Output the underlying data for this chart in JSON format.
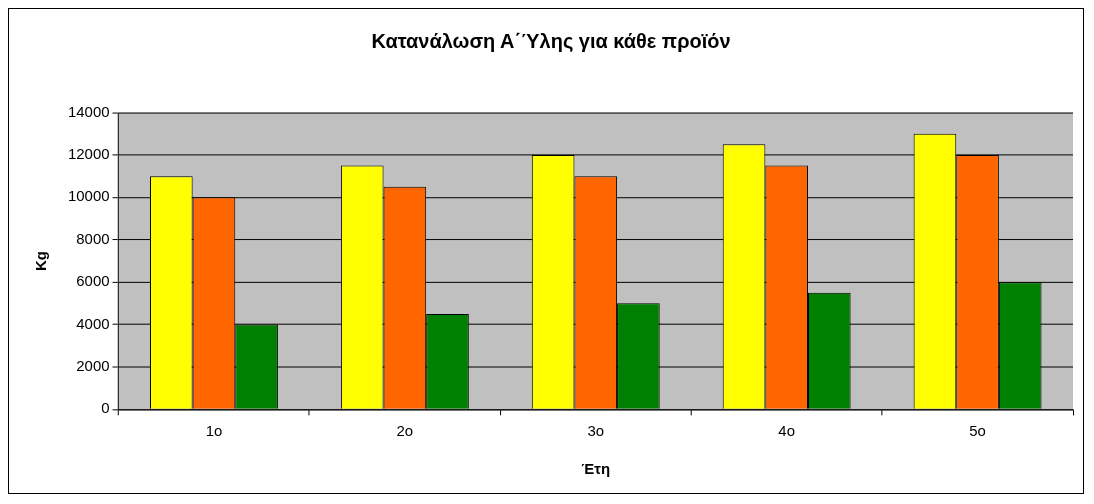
{
  "chart_data": {
    "type": "bar",
    "title": "Κατανάλωση Α΄Ύλης για κάθε προϊόν",
    "xlabel": "Έτη",
    "ylabel": "Kg",
    "categories": [
      "1ο",
      "2ο",
      "3ο",
      "4ο",
      "5ο"
    ],
    "series": [
      {
        "color": "#ffff00",
        "values": [
          11000,
          11500,
          12000,
          12500,
          13000
        ]
      },
      {
        "color": "#ff6600",
        "values": [
          10000,
          10500,
          11000,
          11500,
          12000
        ]
      },
      {
        "color": "#008000",
        "values": [
          4000,
          4500,
          5000,
          5500,
          6000
        ]
      }
    ],
    "ylim": [
      0,
      14000
    ],
    "yticks": [
      0,
      2000,
      4000,
      6000,
      8000,
      10000,
      12000,
      14000
    ],
    "grid": "y",
    "legend": false
  }
}
